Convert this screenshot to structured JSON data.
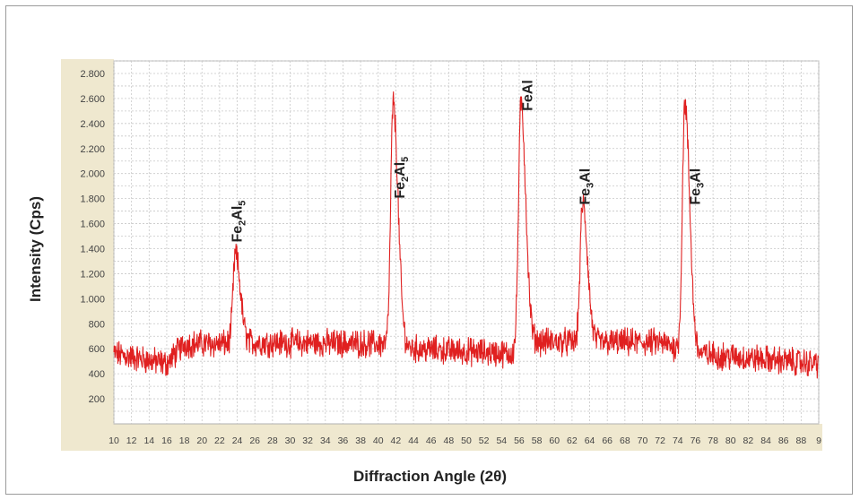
{
  "chart_data": {
    "type": "line",
    "xlabel": "Diffraction Angle (2θ)",
    "ylabel": "Intensity (Cps)",
    "xlim": [
      10,
      90
    ],
    "ylim": [
      0,
      2900
    ],
    "x_ticks": [
      "10",
      "12",
      "14",
      "16",
      "18",
      "20",
      "22",
      "24",
      "26",
      "28",
      "30",
      "32",
      "34",
      "36",
      "38",
      "40",
      "42",
      "44",
      "46",
      "48",
      "50",
      "52",
      "54",
      "56",
      "58",
      "60",
      "62",
      "64",
      "66",
      "68",
      "70",
      "72",
      "74",
      "76",
      "78",
      "80",
      "82",
      "84",
      "86",
      "88",
      "9"
    ],
    "y_ticks": [
      "200",
      "400",
      "600",
      "800",
      "1.000",
      "1.200",
      "1.400",
      "1.600",
      "1.800",
      "2.000",
      "2.200",
      "2.400",
      "2.600",
      "2.800"
    ],
    "y_tick_values": [
      200,
      400,
      600,
      800,
      1000,
      1200,
      1400,
      1600,
      1800,
      2000,
      2200,
      2400,
      2600,
      2800
    ],
    "grid": true,
    "line_color": "#e02020",
    "series": [
      {
        "baseline": [
          [
            10,
            560
          ],
          [
            16,
            480
          ],
          [
            18,
            640
          ],
          [
            23,
            640
          ],
          [
            26,
            650
          ],
          [
            40,
            640
          ],
          [
            44,
            600
          ],
          [
            55,
            560
          ],
          [
            58,
            660
          ],
          [
            63,
            650
          ],
          [
            72,
            650
          ],
          [
            76,
            560
          ],
          [
            90,
            480
          ]
        ],
        "peaks": [
          {
            "x": 23.8,
            "y": 1350
          },
          {
            "x": 41.7,
            "y": 2560
          },
          {
            "x": 56.2,
            "y": 2550
          },
          {
            "x": 63.2,
            "y": 1760
          },
          {
            "x": 74.8,
            "y": 2560
          }
        ]
      }
    ],
    "annotations": [
      {
        "x": 24.5,
        "y": 1450,
        "base": "Fe",
        "sub1": "2",
        "mid": "Al",
        "sub2": "5"
      },
      {
        "x": 43.0,
        "y": 1800,
        "base": "Fe",
        "sub1": "2",
        "mid": "Al",
        "sub2": "5"
      },
      {
        "x": 57.5,
        "y": 2500,
        "base": "FeAl"
      },
      {
        "x": 64.0,
        "y": 1750,
        "base": "Fe",
        "sub1": "3",
        "mid": "Al"
      },
      {
        "x": 76.5,
        "y": 1750,
        "base": "Fe",
        "sub1": "3",
        "mid": "Al"
      }
    ]
  }
}
